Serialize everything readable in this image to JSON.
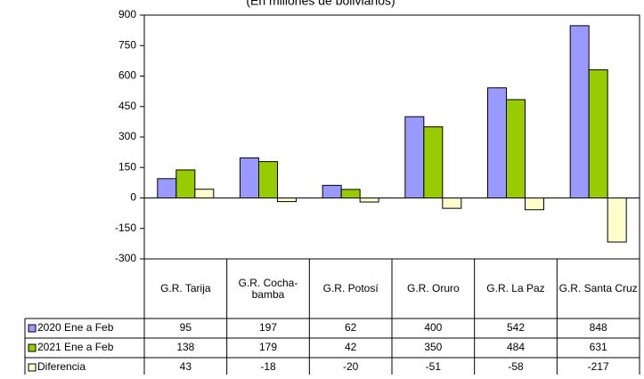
{
  "chart_data": {
    "type": "bar",
    "title": "(En millones de bolivianos)",
    "categories": [
      "G.R. Tarija",
      "G.R. Cocha-bamba",
      "G.R. Potosí",
      "G.R. Oruro",
      "G.R. La Paz",
      "G.R. Santa Cruz"
    ],
    "series": [
      {
        "name": "2020 Ene a Feb",
        "color": "#9999ff",
        "values": [
          95,
          197,
          62,
          400,
          542,
          848
        ]
      },
      {
        "name": "2021 Ene a Feb",
        "color": "#99cc00",
        "values": [
          138,
          179,
          42,
          350,
          484,
          631
        ]
      },
      {
        "name": "Diferencia",
        "color": "#ffffcc",
        "values": [
          43,
          -18,
          -20,
          -51,
          -58,
          -217
        ]
      }
    ],
    "ylim": [
      -300,
      900
    ],
    "yticks": [
      -300,
      -150,
      0,
      150,
      300,
      450,
      600,
      750,
      900
    ],
    "grid": false
  }
}
